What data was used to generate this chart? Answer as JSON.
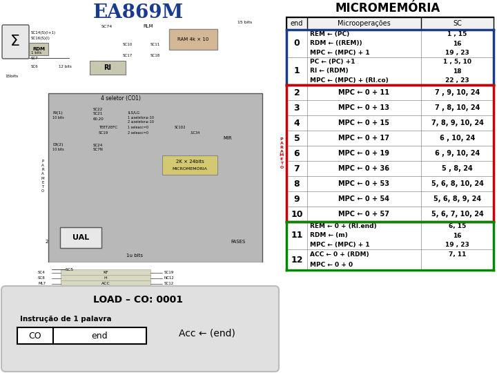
{
  "title_left": "EA869M",
  "title_right": "MICROMEMÓRIA",
  "title_left_color": "#1a3a8c",
  "title_right_color": "#000000",
  "table_header": [
    "end",
    "Microoperações",
    "SC"
  ],
  "rows": [
    {
      "end": "0",
      "ops": [
        "REM ← (PC)",
        "RDM ← ((REM))",
        "MPC ← (MPC) + 1"
      ],
      "sc": [
        "1 , 15",
        "16",
        "19 , 23"
      ],
      "border_color": "#1a3a8c",
      "multi": true
    },
    {
      "end": "1",
      "ops": [
        "PC ← (PC) +1",
        "RI ← (RDM)",
        "MPC ← (MPC) + (RI.co)"
      ],
      "sc": [
        "1 , 5, 10",
        "18",
        "22 , 23"
      ],
      "border_color": "#1a3a8c",
      "multi": true
    },
    {
      "end": "2",
      "ops": [
        "MPC ← 0 + 11"
      ],
      "sc": [
        "7 , 9, 10, 24"
      ],
      "border_color": "#cc0000",
      "multi": false
    },
    {
      "end": "3",
      "ops": [
        "MPC ← 0 + 13"
      ],
      "sc": [
        "7 , 8, 10, 24"
      ],
      "border_color": "#cc0000",
      "multi": false
    },
    {
      "end": "4",
      "ops": [
        "MPC ← 0 + 15"
      ],
      "sc": [
        "7, 8, 9, 10, 24"
      ],
      "border_color": "#cc0000",
      "multi": false
    },
    {
      "end": "5",
      "ops": [
        "MPC ← 0 + 17"
      ],
      "sc": [
        "6 , 10, 24"
      ],
      "border_color": "#cc0000",
      "multi": false
    },
    {
      "end": "6",
      "ops": [
        "MPC ← 0 + 19"
      ],
      "sc": [
        "6 , 9, 10, 24"
      ],
      "border_color": "#cc0000",
      "multi": false
    },
    {
      "end": "7",
      "ops": [
        "MPC ← 0 + 36"
      ],
      "sc": [
        "5 , 8, 24"
      ],
      "border_color": "#cc0000",
      "multi": false
    },
    {
      "end": "8",
      "ops": [
        "MPC ← 0 + 53"
      ],
      "sc": [
        "5, 6, 8, 10, 24"
      ],
      "border_color": "#cc0000",
      "multi": false
    },
    {
      "end": "9",
      "ops": [
        "MPC ← 0 + 54"
      ],
      "sc": [
        "5, 6, 8, 9, 24"
      ],
      "border_color": "#cc0000",
      "multi": false
    },
    {
      "end": "10",
      "ops": [
        "MPC ← 0 + 57"
      ],
      "sc": [
        "5, 6, 7, 10, 24"
      ],
      "border_color": "#cc0000",
      "multi": false
    },
    {
      "end": "11",
      "ops": [
        "REM ← 0 + (RI.end)",
        "RDM ← (m)",
        "MPC ← (MPC) + 1"
      ],
      "sc": [
        "6, 15",
        "16",
        "19 , 23"
      ],
      "border_color": "#008800",
      "multi": true
    },
    {
      "end": "12",
      "ops": [
        "ACC ← 0 + (RDM)",
        "MPC ← 0 + 0"
      ],
      "sc": [
        "7, 11",
        ""
      ],
      "border_color": "#008800",
      "multi": true
    }
  ],
  "bottom_box_title": "LOAD – CO: 0001",
  "bottom_label": "Instrução de 1 palavra",
  "bottom_co": "CO",
  "bottom_end": "end",
  "bottom_acc": "Acc ← (end)",
  "bg_color": "#ffffff"
}
